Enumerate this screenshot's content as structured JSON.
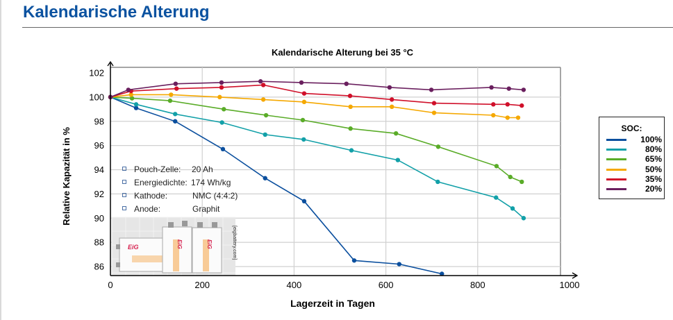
{
  "header": {
    "title": "Kalendarische Alterung"
  },
  "info_box": {
    "items": [
      {
        "label": "Pouch-Zelle:",
        "value": "20 Ah"
      },
      {
        "label": "Energiedichte:",
        "value": "174 Wh/kg"
      },
      {
        "label": "Kathode:",
        "value": "NMC (4:4:2)"
      },
      {
        "label": "Anode:",
        "value": "Graphit"
      }
    ],
    "photo_logo": "EiG",
    "photo_credit": "[eigbattery.com]"
  },
  "chart_data": {
    "type": "line",
    "title": "Kalendarische Alterung bei 35 °C",
    "xlabel": "Lagerzeit in Tagen",
    "ylabel": "Relative Kapazität in %",
    "xlim": [
      0,
      1000
    ],
    "ylim": [
      85,
      102
    ],
    "xticks": [
      "0",
      "200",
      "400",
      "600",
      "800",
      "1000"
    ],
    "xtick_values": [
      0,
      200,
      400,
      600,
      800,
      1000
    ],
    "yticks": [
      "86",
      "88",
      "90",
      "92",
      "94",
      "96",
      "98",
      "100",
      "102"
    ],
    "ytick_values": [
      86,
      88,
      90,
      92,
      94,
      96,
      98,
      100,
      102
    ],
    "grid": true,
    "legend_title": "SOC:",
    "legend_position": "right",
    "series": [
      {
        "name": "100%",
        "color": "#0b4f9e",
        "x": [
          0,
          56,
          141,
          245,
          337,
          422,
          531,
          629,
          722
        ],
        "y": [
          100,
          99.1,
          98.0,
          95.7,
          93.3,
          91.4,
          86.5,
          86.2,
          85.4
        ]
      },
      {
        "name": "80%",
        "color": "#12a0a8",
        "x": [
          0,
          56,
          141,
          243,
          337,
          421,
          525,
          626,
          713,
          840,
          876,
          900
        ],
        "y": [
          100,
          99.4,
          98.6,
          97.9,
          96.9,
          96.5,
          95.6,
          94.8,
          93.0,
          91.7,
          90.8,
          90.0
        ]
      },
      {
        "name": "65%",
        "color": "#5aac28",
        "x": [
          0,
          47,
          130,
          247,
          339,
          419,
          523,
          622,
          714,
          841,
          871,
          896
        ],
        "y": [
          100,
          99.9,
          99.7,
          99.0,
          98.5,
          98.1,
          97.4,
          97.0,
          95.9,
          94.3,
          93.4,
          93.0
        ]
      },
      {
        "name": "50%",
        "color": "#f5a800",
        "x": [
          0,
          45,
          132,
          238,
          333,
          422,
          523,
          613,
          705,
          834,
          865,
          888
        ],
        "y": [
          100,
          100.2,
          100.2,
          100.0,
          99.8,
          99.6,
          99.2,
          99.2,
          98.7,
          98.5,
          98.3,
          98.3
        ]
      },
      {
        "name": "35%",
        "color": "#d0102a",
        "x": [
          0,
          45,
          144,
          242,
          333,
          422,
          522,
          613,
          705,
          834,
          865,
          896
        ],
        "y": [
          100,
          100.5,
          100.7,
          100.8,
          101.0,
          100.3,
          100.1,
          99.8,
          99.5,
          99.4,
          99.4,
          99.3
        ]
      },
      {
        "name": "20%",
        "color": "#6a1f5e",
        "x": [
          0,
          39,
          142,
          242,
          327,
          416,
          514,
          608,
          699,
          830,
          868,
          900
        ],
        "y": [
          100,
          100.6,
          101.1,
          101.2,
          101.3,
          101.2,
          101.1,
          100.8,
          100.6,
          100.8,
          100.7,
          100.6
        ]
      }
    ]
  }
}
